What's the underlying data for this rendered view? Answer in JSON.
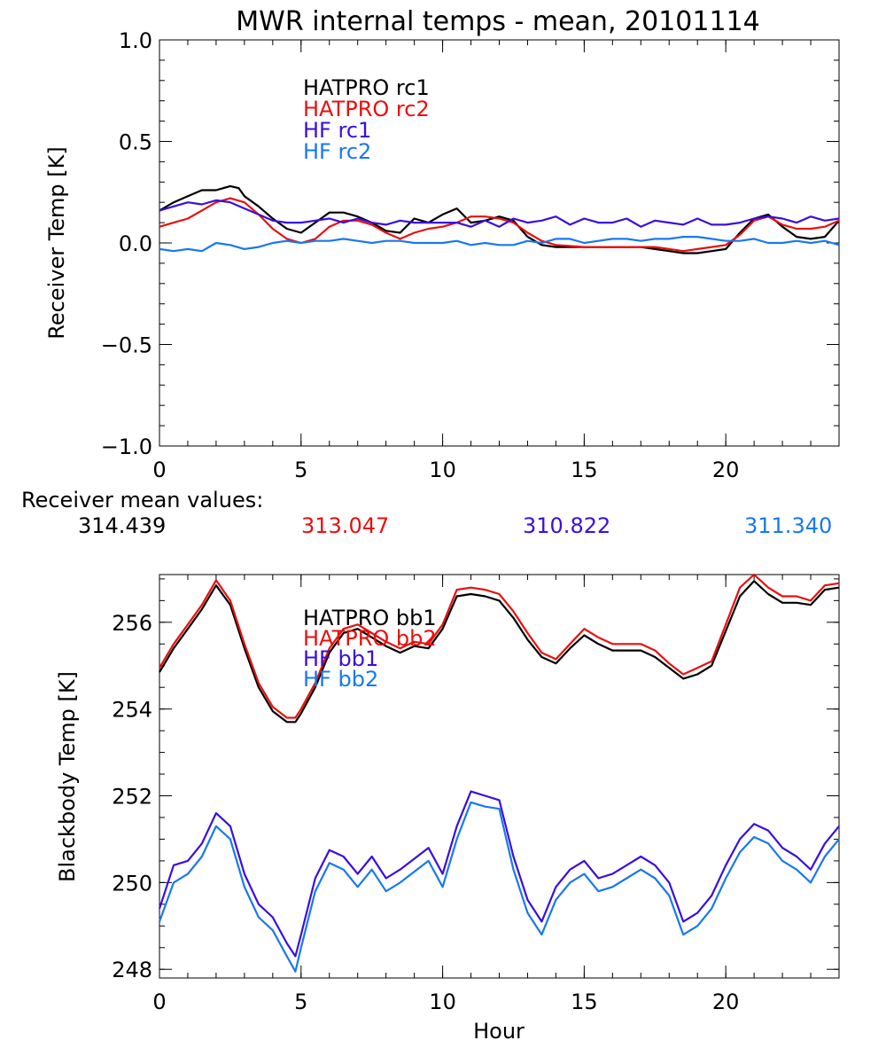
{
  "colors": {
    "black": "#000000",
    "red": "#e8100e",
    "purple": "#3a0ee0",
    "blue": "#1878f0"
  },
  "chart_data": [
    {
      "type": "line",
      "title": "MWR internal temps - mean, 20101114",
      "xlabel": "",
      "ylabel": "Receiver Temp [K]",
      "xlim": [
        0,
        24
      ],
      "ylim": [
        -1.0,
        1.0
      ],
      "xticks": [
        0,
        5,
        10,
        15,
        20
      ],
      "yticks": [
        "-1.0",
        "-0.5",
        "0.0",
        "0.5",
        "1.0"
      ],
      "legend_placement": "top-left",
      "series": [
        {
          "name": "HATPRO rc1",
          "color": "#000000",
          "x": [
            0,
            0.5,
            1,
            1.5,
            2,
            2.5,
            2.8,
            3,
            3.5,
            4,
            4.5,
            5,
            5.5,
            6,
            6.5,
            7,
            7.5,
            8,
            8.5,
            9,
            9.5,
            10,
            10.5,
            11,
            11.5,
            12,
            12.5,
            13,
            13.5,
            14,
            14.5,
            15,
            16,
            17,
            17.5,
            18,
            18.5,
            19,
            19.5,
            20,
            20.5,
            21,
            21.5,
            22,
            22.5,
            23,
            23.5,
            24
          ],
          "y": [
            0.16,
            0.2,
            0.23,
            0.26,
            0.26,
            0.28,
            0.27,
            0.23,
            0.18,
            0.12,
            0.07,
            0.05,
            0.1,
            0.15,
            0.15,
            0.13,
            0.1,
            0.06,
            0.05,
            0.12,
            0.1,
            0.14,
            0.17,
            0.1,
            0.11,
            0.13,
            0.11,
            0.03,
            -0.01,
            -0.02,
            -0.02,
            -0.02,
            -0.02,
            -0.02,
            -0.03,
            -0.04,
            -0.05,
            -0.05,
            -0.04,
            -0.03,
            0.05,
            0.12,
            0.14,
            0.08,
            0.03,
            0.02,
            0.03,
            0.11
          ]
        },
        {
          "name": "HATPRO rc2",
          "color": "#e8100e",
          "x": [
            0,
            0.5,
            1,
            1.5,
            2,
            2.5,
            3,
            3.5,
            4,
            4.5,
            5,
            5.5,
            6,
            6.5,
            7,
            7.5,
            8,
            8.5,
            9,
            9.5,
            10,
            10.5,
            11,
            11.5,
            12,
            12.5,
            13,
            13.5,
            14,
            15,
            16,
            17,
            17.5,
            18,
            18.5,
            19,
            19.5,
            20,
            20.5,
            21,
            21.5,
            22,
            22.5,
            23,
            23.5,
            24
          ],
          "y": [
            0.08,
            0.1,
            0.12,
            0.16,
            0.2,
            0.22,
            0.2,
            0.14,
            0.07,
            0.02,
            0.0,
            0.02,
            0.08,
            0.11,
            0.11,
            0.09,
            0.05,
            0.02,
            0.05,
            0.07,
            0.08,
            0.1,
            0.13,
            0.13,
            0.12,
            0.1,
            0.05,
            0.01,
            -0.01,
            -0.02,
            -0.02,
            -0.02,
            -0.02,
            -0.03,
            -0.04,
            -0.03,
            -0.02,
            -0.01,
            0.04,
            0.11,
            0.13,
            0.09,
            0.07,
            0.07,
            0.08,
            0.11
          ]
        },
        {
          "name": "HF rc1",
          "color": "#3a0ee0",
          "x": [
            0,
            0.5,
            1,
            1.5,
            2,
            2.5,
            3,
            3.5,
            4,
            4.5,
            5,
            5.5,
            6,
            6.5,
            7,
            7.5,
            8,
            8.5,
            9,
            9.5,
            10,
            10.5,
            11,
            11.5,
            12,
            12.5,
            13,
            13.5,
            14,
            14.5,
            15,
            15.5,
            16,
            16.5,
            17,
            17.5,
            18,
            18.5,
            19,
            19.5,
            20,
            20.5,
            21,
            21.5,
            22,
            22.5,
            23,
            23.5,
            24
          ],
          "y": [
            0.16,
            0.18,
            0.2,
            0.19,
            0.21,
            0.2,
            0.17,
            0.14,
            0.11,
            0.1,
            0.1,
            0.11,
            0.12,
            0.1,
            0.12,
            0.1,
            0.09,
            0.11,
            0.1,
            0.1,
            0.1,
            0.1,
            0.08,
            0.11,
            0.08,
            0.12,
            0.1,
            0.11,
            0.13,
            0.09,
            0.12,
            0.1,
            0.1,
            0.12,
            0.08,
            0.11,
            0.1,
            0.09,
            0.12,
            0.09,
            0.09,
            0.1,
            0.12,
            0.13,
            0.12,
            0.1,
            0.13,
            0.11,
            0.12
          ]
        },
        {
          "name": "HF rc2",
          "color": "#1878f0",
          "x": [
            0,
            0.5,
            1,
            1.5,
            2,
            2.5,
            3,
            3.5,
            4,
            4.5,
            5,
            5.5,
            6,
            6.5,
            7,
            7.5,
            8,
            8.5,
            9,
            9.5,
            10,
            10.5,
            11,
            11.5,
            12,
            12.5,
            13,
            13.5,
            14,
            14.5,
            15,
            15.5,
            16,
            16.5,
            17,
            17.5,
            18,
            18.5,
            19,
            19.5,
            20,
            20.5,
            21,
            21.5,
            22,
            22.5,
            23,
            23.5,
            24
          ],
          "y": [
            -0.03,
            -0.04,
            -0.03,
            -0.04,
            0.0,
            -0.01,
            -0.03,
            -0.02,
            0.0,
            0.01,
            0.0,
            0.01,
            0.01,
            0.02,
            0.01,
            0.0,
            0.01,
            0.01,
            0.0,
            0.0,
            0.0,
            0.01,
            -0.01,
            0.0,
            -0.01,
            -0.01,
            0.01,
            0.0,
            0.02,
            0.02,
            0.0,
            0.01,
            0.02,
            0.02,
            0.01,
            0.02,
            0.02,
            0.03,
            0.03,
            0.02,
            0.01,
            0.01,
            0.02,
            0.0,
            0.0,
            0.01,
            0.0,
            0.01,
            -0.01
          ]
        }
      ],
      "footer": {
        "label": "Receiver mean values:",
        "values": [
          {
            "text": "314.439",
            "color": "#000000"
          },
          {
            "text": "313.047",
            "color": "#e8100e"
          },
          {
            "text": "310.822",
            "color": "#3a0ee0"
          },
          {
            "text": "311.340",
            "color": "#1878f0"
          }
        ]
      }
    },
    {
      "type": "line",
      "title": "",
      "xlabel": "Hour",
      "ylabel": "Blackbody Temp [K]",
      "xlim": [
        0,
        24
      ],
      "ylim": [
        247.8,
        257.1
      ],
      "xticks": [
        0,
        5,
        10,
        15,
        20
      ],
      "yticks": [
        "248",
        "250",
        "252",
        "254",
        "256"
      ],
      "legend_placement": "top-left",
      "series": [
        {
          "name": "HATPRO bb1",
          "color": "#000000",
          "x": [
            0,
            0.5,
            1,
            1.5,
            2,
            2.5,
            3,
            3.5,
            4,
            4.5,
            4.8,
            5,
            5.5,
            6,
            6.5,
            7,
            7.5,
            8,
            8.5,
            9,
            9.5,
            10,
            10.5,
            11,
            11.5,
            12,
            12.5,
            13,
            13.5,
            14,
            14.5,
            15,
            15.5,
            16,
            16.5,
            17,
            17.5,
            18,
            18.5,
            19,
            19.5,
            20,
            20.5,
            21,
            21.5,
            22,
            22.5,
            23,
            23.5,
            24
          ],
          "y": [
            254.85,
            255.4,
            255.85,
            256.3,
            256.85,
            256.4,
            255.4,
            254.5,
            253.95,
            253.7,
            253.7,
            253.9,
            254.5,
            255.3,
            255.75,
            255.85,
            255.65,
            255.45,
            255.3,
            255.45,
            255.4,
            255.85,
            256.6,
            256.65,
            256.6,
            256.5,
            256.1,
            255.6,
            255.2,
            255.05,
            255.4,
            255.7,
            255.5,
            255.35,
            255.35,
            255.35,
            255.2,
            254.95,
            254.7,
            254.8,
            255.0,
            255.8,
            256.6,
            256.95,
            256.65,
            256.45,
            256.45,
            256.4,
            256.75,
            256.8
          ]
        },
        {
          "name": "HATPRO bb2",
          "color": "#e8100e",
          "x": [
            0,
            0.5,
            1,
            1.5,
            2,
            2.5,
            3,
            3.5,
            4,
            4.5,
            4.8,
            5,
            5.5,
            6,
            6.5,
            7,
            7.5,
            8,
            8.5,
            9,
            9.5,
            10,
            10.5,
            11,
            11.5,
            12,
            12.5,
            13,
            13.5,
            14,
            14.5,
            15,
            15.5,
            16,
            16.5,
            17,
            17.5,
            18,
            18.5,
            19,
            19.5,
            20,
            20.5,
            21,
            21.5,
            22,
            22.5,
            23,
            23.5,
            24
          ],
          "y": [
            254.95,
            255.5,
            255.95,
            256.4,
            256.97,
            256.5,
            255.5,
            254.6,
            254.05,
            253.8,
            253.8,
            254.0,
            254.6,
            255.4,
            255.85,
            255.95,
            255.75,
            255.55,
            255.4,
            255.55,
            255.5,
            255.95,
            256.75,
            256.8,
            256.75,
            256.65,
            256.25,
            255.75,
            255.3,
            255.15,
            255.5,
            255.85,
            255.65,
            255.5,
            255.5,
            255.5,
            255.35,
            255.05,
            254.8,
            254.95,
            255.1,
            255.95,
            256.8,
            257.1,
            256.8,
            256.6,
            256.6,
            256.5,
            256.85,
            256.9
          ]
        },
        {
          "name": "HF bb1",
          "color": "#3a0ee0",
          "x": [
            0,
            0.5,
            1,
            1.5,
            2,
            2.5,
            3,
            3.5,
            4,
            4.5,
            4.8,
            5,
            5.5,
            6,
            6.5,
            7,
            7.5,
            8,
            8.5,
            9,
            9.5,
            10,
            10.5,
            11,
            11.5,
            12,
            12.5,
            13,
            13.5,
            14,
            14.5,
            15,
            15.5,
            16,
            16.5,
            17,
            17.5,
            18,
            18.5,
            19,
            19.5,
            20,
            20.5,
            21,
            21.5,
            22,
            22.5,
            23,
            23.5,
            24
          ],
          "y": [
            249.4,
            250.4,
            250.5,
            250.9,
            251.6,
            251.3,
            250.2,
            249.5,
            249.2,
            248.6,
            248.3,
            248.8,
            250.1,
            250.75,
            250.6,
            250.2,
            250.6,
            250.1,
            250.3,
            250.55,
            250.8,
            250.2,
            251.3,
            252.1,
            252.0,
            251.9,
            250.6,
            249.6,
            249.1,
            249.9,
            250.3,
            250.5,
            250.1,
            250.2,
            250.4,
            250.6,
            250.4,
            250.0,
            249.1,
            249.3,
            249.7,
            250.4,
            251.0,
            251.35,
            251.2,
            250.8,
            250.6,
            250.3,
            250.9,
            251.3
          ]
        },
        {
          "name": "HF bb2",
          "color": "#1878f0",
          "x": [
            0,
            0.5,
            1,
            1.5,
            2,
            2.5,
            3,
            3.5,
            4,
            4.5,
            4.8,
            5,
            5.5,
            6,
            6.5,
            7,
            7.5,
            8,
            8.5,
            9,
            9.5,
            10,
            10.5,
            11,
            11.5,
            12,
            12.5,
            13,
            13.5,
            14,
            14.5,
            15,
            15.5,
            16,
            16.5,
            17,
            17.5,
            18,
            18.5,
            19,
            19.5,
            20,
            20.5,
            21,
            21.5,
            22,
            22.5,
            23,
            23.5,
            24
          ],
          "y": [
            249.1,
            250.0,
            250.2,
            250.6,
            251.3,
            251.0,
            249.9,
            249.2,
            248.9,
            248.3,
            247.95,
            248.5,
            249.8,
            250.45,
            250.3,
            249.9,
            250.3,
            249.8,
            250.0,
            250.25,
            250.5,
            249.9,
            251.0,
            251.85,
            251.75,
            251.7,
            250.3,
            249.3,
            248.8,
            249.6,
            250.0,
            250.2,
            249.8,
            249.9,
            250.1,
            250.3,
            250.1,
            249.7,
            248.8,
            249.0,
            249.4,
            250.1,
            250.7,
            251.05,
            250.9,
            250.5,
            250.3,
            250.0,
            250.6,
            251.0
          ]
        }
      ]
    }
  ]
}
